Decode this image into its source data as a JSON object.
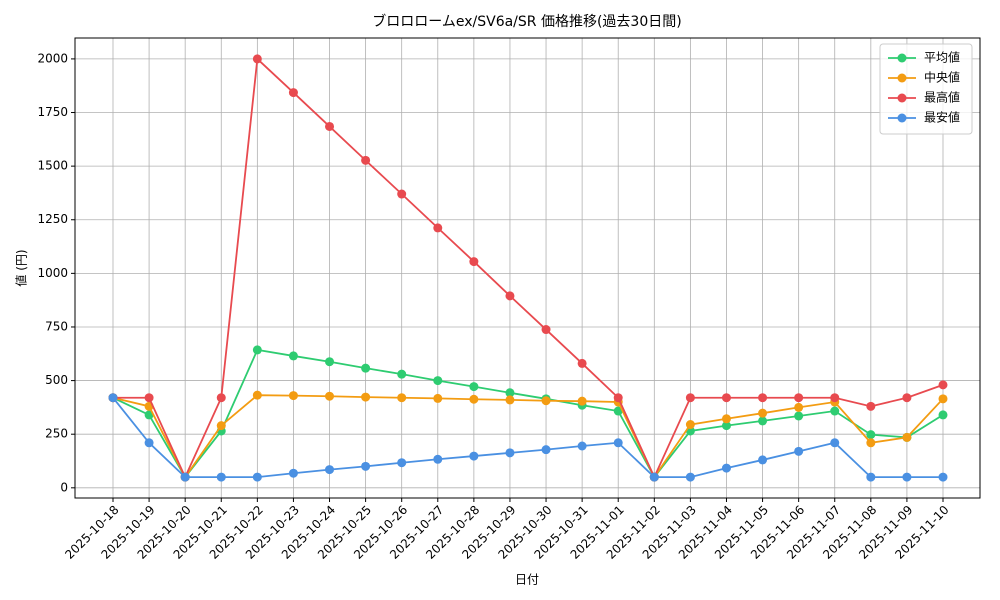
{
  "chart_data": {
    "type": "line",
    "title": "ブロロロームex/SV6a/SR 価格推移(過去30日間)",
    "x_label": "日付",
    "y_label": "値 (円)",
    "categories": [
      "2025-10-18",
      "2025-10-19",
      "2025-10-20",
      "2025-10-21",
      "2025-10-22",
      "2025-10-23",
      "2025-10-24",
      "2025-10-25",
      "2025-10-26",
      "2025-10-27",
      "2025-10-28",
      "2025-10-29",
      "2025-10-30",
      "2025-10-31",
      "2025-11-01",
      "2025-11-02",
      "2025-11-03",
      "2025-11-04",
      "2025-11-05",
      "2025-11-06",
      "2025-11-07",
      "2025-11-08",
      "2025-11-09",
      "2025-11-10"
    ],
    "series": [
      {
        "name": "平均値",
        "color": "#2ecc71",
        "values": [
          420,
          340,
          50,
          265,
          643,
          615,
          588,
          558,
          530,
          500,
          472,
          443,
          415,
          385,
          358,
          50,
          265,
          290,
          312,
          335,
          358,
          248,
          235,
          340
        ]
      },
      {
        "name": "中央値",
        "color": "#f39c12",
        "values": [
          420,
          380,
          50,
          290,
          432,
          430,
          427,
          423,
          420,
          417,
          413,
          410,
          406,
          404,
          400,
          50,
          295,
          322,
          348,
          375,
          400,
          210,
          235,
          415
        ]
      },
      {
        "name": "最高値",
        "color": "#e84a4f",
        "values": [
          420,
          420,
          50,
          420,
          2000,
          1843,
          1685,
          1527,
          1370,
          1212,
          1055,
          895,
          738,
          580,
          420,
          50,
          420,
          420,
          420,
          420,
          420,
          380,
          420,
          480
        ]
      },
      {
        "name": "最安値",
        "color": "#4a90e2",
        "values": [
          420,
          210,
          50,
          50,
          50,
          68,
          85,
          100,
          117,
          133,
          148,
          163,
          178,
          195,
          210,
          50,
          50,
          92,
          130,
          170,
          210,
          50,
          50,
          50
        ]
      }
    ],
    "ylim": [
      -47.5,
      2097.5
    ],
    "yticks": [
      0,
      250,
      500,
      750,
      1000,
      1250,
      1500,
      1750,
      2000
    ],
    "grid": true,
    "legend": "upper-right"
  }
}
